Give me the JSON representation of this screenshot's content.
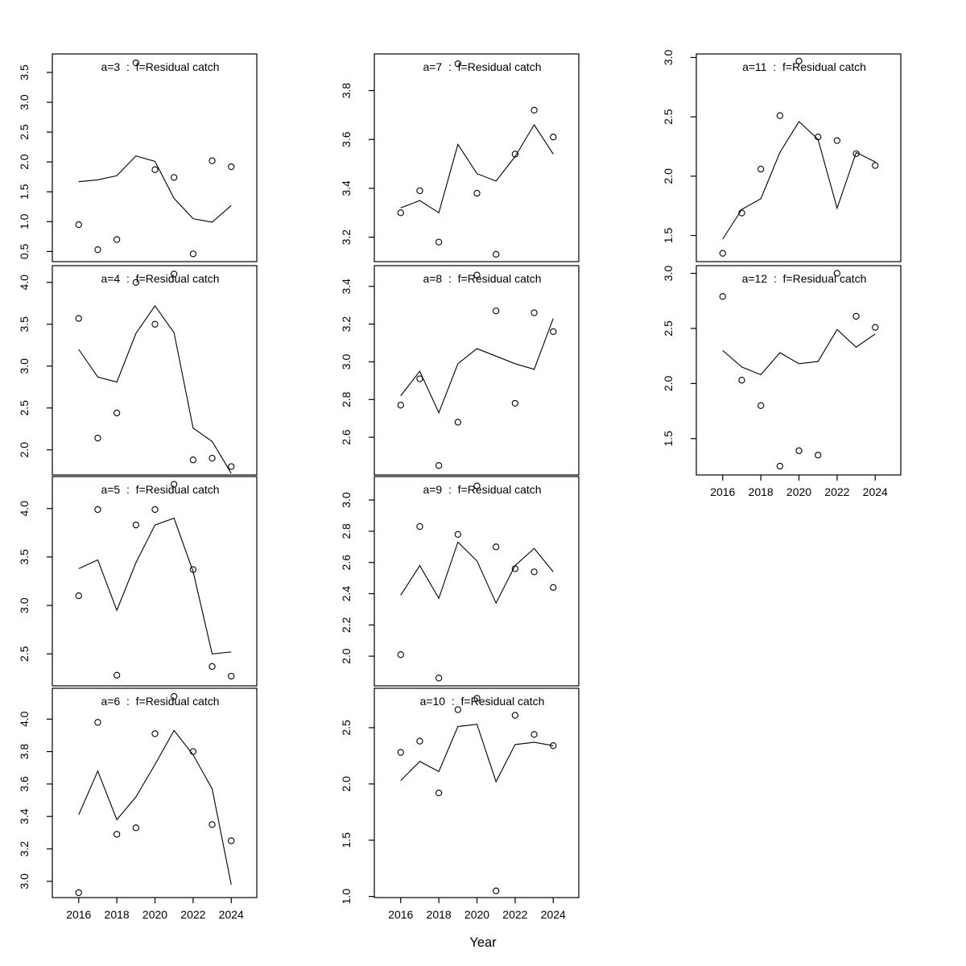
{
  "figure": {
    "background": "#ffffff",
    "axis_color": "#000000",
    "line_color": "#000000",
    "point_color": "#000000",
    "title_color": "#8a8a8a"
  },
  "chart_data": {
    "type": "line",
    "description": "multi-panel scatter (observed points, open circles) with fitted line per age class",
    "xlabel": "Year",
    "x": [
      2016,
      2017,
      2018,
      2019,
      2020,
      2021,
      2022,
      2023,
      2024
    ],
    "xtick_values": [
      2016,
      2018,
      2020,
      2022,
      2024
    ],
    "xtick_labels": [
      "2016",
      "2018",
      "2020",
      "2022",
      "2024"
    ],
    "panels": [
      {
        "id": "a3",
        "title": "a=3  :  f=Residual catch",
        "grid": {
          "row": 0,
          "col": 0
        },
        "ylim": [
          0.33,
          3.81
        ],
        "yticks": [
          0.5,
          1.0,
          1.5,
          2.0,
          2.5,
          3.0,
          3.5
        ],
        "show_x_axis": false,
        "series": [
          {
            "name": "observed",
            "style": "points",
            "values": [
              0.95,
              0.53,
              0.7,
              3.66,
              1.87,
              1.74,
              0.46,
              2.02,
              1.92
            ]
          },
          {
            "name": "fitted",
            "style": "line",
            "values": [
              1.67,
              1.7,
              1.77,
              2.1,
              2.01,
              1.39,
              1.05,
              0.99,
              1.27
            ]
          }
        ]
      },
      {
        "id": "a4",
        "title": "a=4  :  f=Residual catch",
        "grid": {
          "row": 1,
          "col": 0
        },
        "ylim": [
          1.7,
          4.2
        ],
        "yticks": [
          2.0,
          2.5,
          3.0,
          3.5,
          4.0
        ],
        "show_x_axis": false,
        "series": [
          {
            "name": "observed",
            "style": "points",
            "values": [
              3.57,
              2.14,
              2.44,
              4.0,
              3.5,
              4.1,
              1.88,
              1.9,
              1.8
            ]
          },
          {
            "name": "fitted",
            "style": "line",
            "values": [
              3.2,
              2.87,
              2.81,
              3.39,
              3.72,
              3.4,
              2.26,
              2.1,
              1.72
            ]
          }
        ]
      },
      {
        "id": "a5",
        "title": "a=5  :  f=Residual catch",
        "grid": {
          "row": 2,
          "col": 0
        },
        "ylim": [
          2.17,
          4.33
        ],
        "yticks": [
          2.5,
          3.0,
          3.5,
          4.0
        ],
        "show_x_axis": false,
        "series": [
          {
            "name": "observed",
            "style": "points",
            "values": [
              3.1,
              3.99,
              2.28,
              3.83,
              3.99,
              4.25,
              3.37,
              2.37,
              2.27
            ]
          },
          {
            "name": "fitted",
            "style": "line",
            "values": [
              3.38,
              3.47,
              2.95,
              3.44,
              3.83,
              3.9,
              3.35,
              2.5,
              2.52
            ]
          }
        ]
      },
      {
        "id": "a6",
        "title": "a=6  :  f=Residual catch",
        "grid": {
          "row": 3,
          "col": 0
        },
        "ylim": [
          2.9,
          4.19
        ],
        "yticks": [
          3.0,
          3.2,
          3.4,
          3.6,
          3.8,
          4.0
        ],
        "show_x_axis": true,
        "series": [
          {
            "name": "observed",
            "style": "points",
            "values": [
              2.93,
              3.98,
              3.29,
              3.33,
              3.91,
              4.14,
              3.8,
              3.35,
              3.25
            ]
          },
          {
            "name": "fitted",
            "style": "line",
            "values": [
              3.41,
              3.68,
              3.38,
              3.52,
              3.72,
              3.93,
              3.78,
              3.57,
              2.98
            ]
          }
        ]
      },
      {
        "id": "a7",
        "title": "a=7  :  f=Residual catch",
        "grid": {
          "row": 0,
          "col": 1
        },
        "ylim": [
          3.1,
          3.95
        ],
        "yticks": [
          3.2,
          3.4,
          3.6,
          3.8
        ],
        "show_x_axis": false,
        "series": [
          {
            "name": "observed",
            "style": "points",
            "values": [
              3.3,
              3.39,
              3.18,
              3.91,
              3.38,
              3.13,
              3.54,
              3.72,
              3.61
            ]
          },
          {
            "name": "fitted",
            "style": "line",
            "values": [
              3.32,
              3.35,
              3.3,
              3.58,
              3.46,
              3.43,
              3.53,
              3.66,
              3.54
            ]
          }
        ]
      },
      {
        "id": "a8",
        "title": "a=8  :  f=Residual catch",
        "grid": {
          "row": 1,
          "col": 1
        },
        "ylim": [
          2.4,
          3.51
        ],
        "yticks": [
          2.6,
          2.8,
          3.0,
          3.2,
          3.4
        ],
        "show_x_axis": false,
        "series": [
          {
            "name": "observed",
            "style": "points",
            "values": [
              2.77,
              2.91,
              2.45,
              2.68,
              3.46,
              3.27,
              2.78,
              3.26,
              3.16
            ]
          },
          {
            "name": "fitted",
            "style": "line",
            "values": [
              2.82,
              2.95,
              2.73,
              2.99,
              3.07,
              3.03,
              2.99,
              2.96,
              3.23
            ]
          }
        ]
      },
      {
        "id": "a9",
        "title": "a=9  :  f=Residual catch",
        "grid": {
          "row": 2,
          "col": 1
        },
        "ylim": [
          1.81,
          3.15
        ],
        "yticks": [
          2.0,
          2.2,
          2.4,
          2.6,
          2.8,
          3.0
        ],
        "show_x_axis": false,
        "series": [
          {
            "name": "observed",
            "style": "points",
            "values": [
              2.01,
              2.83,
              1.86,
              2.78,
              3.09,
              2.7,
              2.56,
              2.54,
              2.44
            ]
          },
          {
            "name": "fitted",
            "style": "line",
            "values": [
              2.39,
              2.58,
              2.37,
              2.73,
              2.61,
              2.34,
              2.58,
              2.69,
              2.54
            ]
          }
        ]
      },
      {
        "id": "a10",
        "title": "a=10  :  f=Residual catch",
        "grid": {
          "row": 3,
          "col": 1
        },
        "ylim": [
          0.99,
          2.85
        ],
        "yticks": [
          1.0,
          1.5,
          2.0,
          2.5
        ],
        "show_x_axis": true,
        "series": [
          {
            "name": "observed",
            "style": "points",
            "values": [
              2.28,
              2.38,
              1.92,
              2.66,
              2.76,
              1.05,
              2.61,
              2.44,
              2.34
            ]
          },
          {
            "name": "fitted",
            "style": "line",
            "values": [
              2.03,
              2.2,
              2.11,
              2.51,
              2.53,
              2.02,
              2.35,
              2.37,
              2.34
            ]
          }
        ]
      },
      {
        "id": "a11",
        "title": "a=11  :  f=Residual catch",
        "grid": {
          "row": 0,
          "col": 2
        },
        "ylim": [
          1.28,
          3.03
        ],
        "yticks": [
          1.5,
          2.0,
          2.5,
          3.0
        ],
        "show_x_axis": false,
        "series": [
          {
            "name": "observed",
            "style": "points",
            "values": [
              1.35,
              1.69,
              2.06,
              2.51,
              2.97,
              2.33,
              2.3,
              2.19,
              2.09
            ]
          },
          {
            "name": "fitted",
            "style": "line",
            "values": [
              1.47,
              1.72,
              1.81,
              2.2,
              2.46,
              2.31,
              1.73,
              2.2,
              2.12
            ]
          }
        ]
      },
      {
        "id": "a12",
        "title": "a=12  :  f=Residual catch",
        "grid": {
          "row": 1,
          "col": 2
        },
        "ylim": [
          1.17,
          3.07
        ],
        "yticks": [
          1.5,
          2.0,
          2.5,
          3.0
        ],
        "show_x_axis": true,
        "series": [
          {
            "name": "observed",
            "style": "points",
            "values": [
              2.79,
              2.03,
              1.8,
              1.25,
              1.39,
              1.35,
              3.0,
              2.61,
              2.51
            ]
          },
          {
            "name": "fitted",
            "style": "line",
            "values": [
              2.3,
              2.15,
              2.08,
              2.28,
              2.18,
              2.2,
              2.49,
              2.33,
              2.45
            ]
          }
        ]
      }
    ]
  }
}
